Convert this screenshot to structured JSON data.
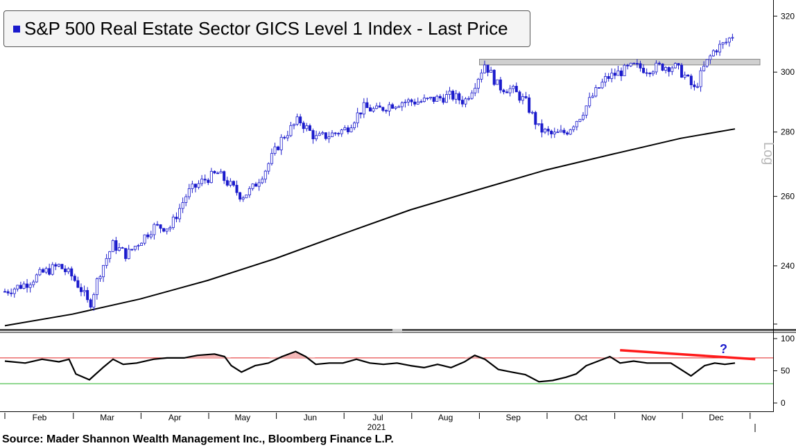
{
  "title": "S&P 500 Real Estate Sector GICS Level 1 Index - Last Price",
  "source": "Source: Mader Shannon Wealth Management Inc., Bloomberg Finance L.P.",
  "scale_label": "Log",
  "annotation_mark": "?",
  "colors": {
    "candles": "#1a1acc",
    "moving_average": "#000000",
    "rsi_line": "#000000",
    "overbought_line": "#e02020",
    "oversold_line": "#20b020",
    "overbought_fill": "#f4b8b8",
    "oversold_fill": "#b8e8b8",
    "divergence_line": "#ff1a1a",
    "resistance_band": "#d0d0d0",
    "question_mark": "#1a1acc"
  },
  "chart_data": [
    {
      "type": "candlestick",
      "name": "price",
      "scale": "log",
      "ylim": [
        223,
        326
      ],
      "yticks": [
        240,
        260,
        280,
        300,
        320
      ],
      "xlim": [
        0,
        11.5
      ],
      "closes_weekly": [
        {
          "x": 0.0,
          "y": 233
        },
        {
          "x": 0.3,
          "y": 235
        },
        {
          "x": 0.55,
          "y": 238
        },
        {
          "x": 0.8,
          "y": 240
        },
        {
          "x": 1.0,
          "y": 237
        },
        {
          "x": 1.15,
          "y": 233
        },
        {
          "x": 1.25,
          "y": 229
        },
        {
          "x": 1.4,
          "y": 238
        },
        {
          "x": 1.6,
          "y": 246
        },
        {
          "x": 1.8,
          "y": 243
        },
        {
          "x": 2.0,
          "y": 247
        },
        {
          "x": 2.2,
          "y": 251
        },
        {
          "x": 2.45,
          "y": 251
        },
        {
          "x": 2.7,
          "y": 261
        },
        {
          "x": 2.95,
          "y": 265
        },
        {
          "x": 3.15,
          "y": 267
        },
        {
          "x": 3.3,
          "y": 264
        },
        {
          "x": 3.5,
          "y": 260
        },
        {
          "x": 3.65,
          "y": 262
        },
        {
          "x": 3.85,
          "y": 268
        },
        {
          "x": 4.1,
          "y": 278
        },
        {
          "x": 4.35,
          "y": 284
        },
        {
          "x": 4.6,
          "y": 278
        },
        {
          "x": 4.8,
          "y": 279
        },
        {
          "x": 5.05,
          "y": 281
        },
        {
          "x": 5.3,
          "y": 288
        },
        {
          "x": 5.5,
          "y": 287
        },
        {
          "x": 5.7,
          "y": 289
        },
        {
          "x": 5.9,
          "y": 290
        },
        {
          "x": 6.15,
          "y": 290
        },
        {
          "x": 6.4,
          "y": 291
        },
        {
          "x": 6.6,
          "y": 292
        },
        {
          "x": 6.8,
          "y": 290
        },
        {
          "x": 6.95,
          "y": 296
        },
        {
          "x": 7.1,
          "y": 303
        },
        {
          "x": 7.3,
          "y": 295
        },
        {
          "x": 7.5,
          "y": 294
        },
        {
          "x": 7.7,
          "y": 290
        },
        {
          "x": 7.9,
          "y": 281
        },
        {
          "x": 8.1,
          "y": 279
        },
        {
          "x": 8.3,
          "y": 280
        },
        {
          "x": 8.5,
          "y": 285
        },
        {
          "x": 8.7,
          "y": 292
        },
        {
          "x": 8.9,
          "y": 298
        },
        {
          "x": 9.1,
          "y": 300
        },
        {
          "x": 9.3,
          "y": 302
        },
        {
          "x": 9.5,
          "y": 301
        },
        {
          "x": 9.7,
          "y": 302
        },
        {
          "x": 9.9,
          "y": 302
        },
        {
          "x": 10.05,
          "y": 299
        },
        {
          "x": 10.2,
          "y": 294
        },
        {
          "x": 10.35,
          "y": 302
        },
        {
          "x": 10.5,
          "y": 308
        },
        {
          "x": 10.65,
          "y": 310
        },
        {
          "x": 10.8,
          "y": 314
        }
      ],
      "moving_average_200d": [
        {
          "x": 0.0,
          "y": 224
        },
        {
          "x": 1.0,
          "y": 227
        },
        {
          "x": 2.0,
          "y": 231
        },
        {
          "x": 3.0,
          "y": 236
        },
        {
          "x": 4.0,
          "y": 242
        },
        {
          "x": 5.0,
          "y": 249
        },
        {
          "x": 6.0,
          "y": 256
        },
        {
          "x": 7.0,
          "y": 262
        },
        {
          "x": 8.0,
          "y": 268
        },
        {
          "x": 9.0,
          "y": 273
        },
        {
          "x": 10.0,
          "y": 278
        },
        {
          "x": 10.8,
          "y": 281
        }
      ],
      "resistance_band": {
        "x_from": 7.0,
        "x_to": 11.2,
        "y_low": 302.5,
        "y_high": 304.5
      }
    },
    {
      "type": "line",
      "name": "rsi",
      "ylim": [
        0,
        100
      ],
      "yticks": [
        0,
        50,
        100
      ],
      "overbought": 70,
      "oversold": 30,
      "values": [
        {
          "x": 0.0,
          "y": 65
        },
        {
          "x": 0.3,
          "y": 62
        },
        {
          "x": 0.55,
          "y": 68
        },
        {
          "x": 0.8,
          "y": 64
        },
        {
          "x": 0.95,
          "y": 68
        },
        {
          "x": 1.05,
          "y": 45
        },
        {
          "x": 1.25,
          "y": 36
        },
        {
          "x": 1.45,
          "y": 55
        },
        {
          "x": 1.6,
          "y": 68
        },
        {
          "x": 1.75,
          "y": 60
        },
        {
          "x": 1.95,
          "y": 62
        },
        {
          "x": 2.2,
          "y": 68
        },
        {
          "x": 2.4,
          "y": 70
        },
        {
          "x": 2.65,
          "y": 70
        },
        {
          "x": 2.85,
          "y": 74
        },
        {
          "x": 3.1,
          "y": 76
        },
        {
          "x": 3.25,
          "y": 72
        },
        {
          "x": 3.35,
          "y": 58
        },
        {
          "x": 3.5,
          "y": 48
        },
        {
          "x": 3.7,
          "y": 58
        },
        {
          "x": 3.9,
          "y": 62
        },
        {
          "x": 4.1,
          "y": 72
        },
        {
          "x": 4.3,
          "y": 80
        },
        {
          "x": 4.45,
          "y": 72
        },
        {
          "x": 4.6,
          "y": 60
        },
        {
          "x": 4.8,
          "y": 62
        },
        {
          "x": 5.0,
          "y": 62
        },
        {
          "x": 5.2,
          "y": 68
        },
        {
          "x": 5.4,
          "y": 62
        },
        {
          "x": 5.6,
          "y": 60
        },
        {
          "x": 5.8,
          "y": 62
        },
        {
          "x": 6.0,
          "y": 58
        },
        {
          "x": 6.2,
          "y": 55
        },
        {
          "x": 6.4,
          "y": 60
        },
        {
          "x": 6.6,
          "y": 55
        },
        {
          "x": 6.8,
          "y": 64
        },
        {
          "x": 6.95,
          "y": 74
        },
        {
          "x": 7.1,
          "y": 68
        },
        {
          "x": 7.3,
          "y": 52
        },
        {
          "x": 7.5,
          "y": 48
        },
        {
          "x": 7.7,
          "y": 44
        },
        {
          "x": 7.9,
          "y": 33
        },
        {
          "x": 8.1,
          "y": 35
        },
        {
          "x": 8.3,
          "y": 40
        },
        {
          "x": 8.45,
          "y": 45
        },
        {
          "x": 8.6,
          "y": 58
        },
        {
          "x": 8.8,
          "y": 66
        },
        {
          "x": 8.95,
          "y": 72
        },
        {
          "x": 9.1,
          "y": 62
        },
        {
          "x": 9.3,
          "y": 65
        },
        {
          "x": 9.5,
          "y": 62
        },
        {
          "x": 9.7,
          "y": 62
        },
        {
          "x": 9.85,
          "y": 62
        },
        {
          "x": 10.0,
          "y": 52
        },
        {
          "x": 10.15,
          "y": 42
        },
        {
          "x": 10.35,
          "y": 58
        },
        {
          "x": 10.5,
          "y": 62
        },
        {
          "x": 10.65,
          "y": 60
        },
        {
          "x": 10.8,
          "y": 62
        }
      ],
      "divergence_line": [
        {
          "x": 9.1,
          "y": 82
        },
        {
          "x": 11.1,
          "y": 68
        }
      ]
    }
  ],
  "x_axis": {
    "months": [
      "Feb",
      "Mar",
      "Apr",
      "May",
      "Jun",
      "Jul",
      "Aug",
      "Sep",
      "Oct",
      "Nov",
      "Dec"
    ],
    "year": "2021"
  }
}
